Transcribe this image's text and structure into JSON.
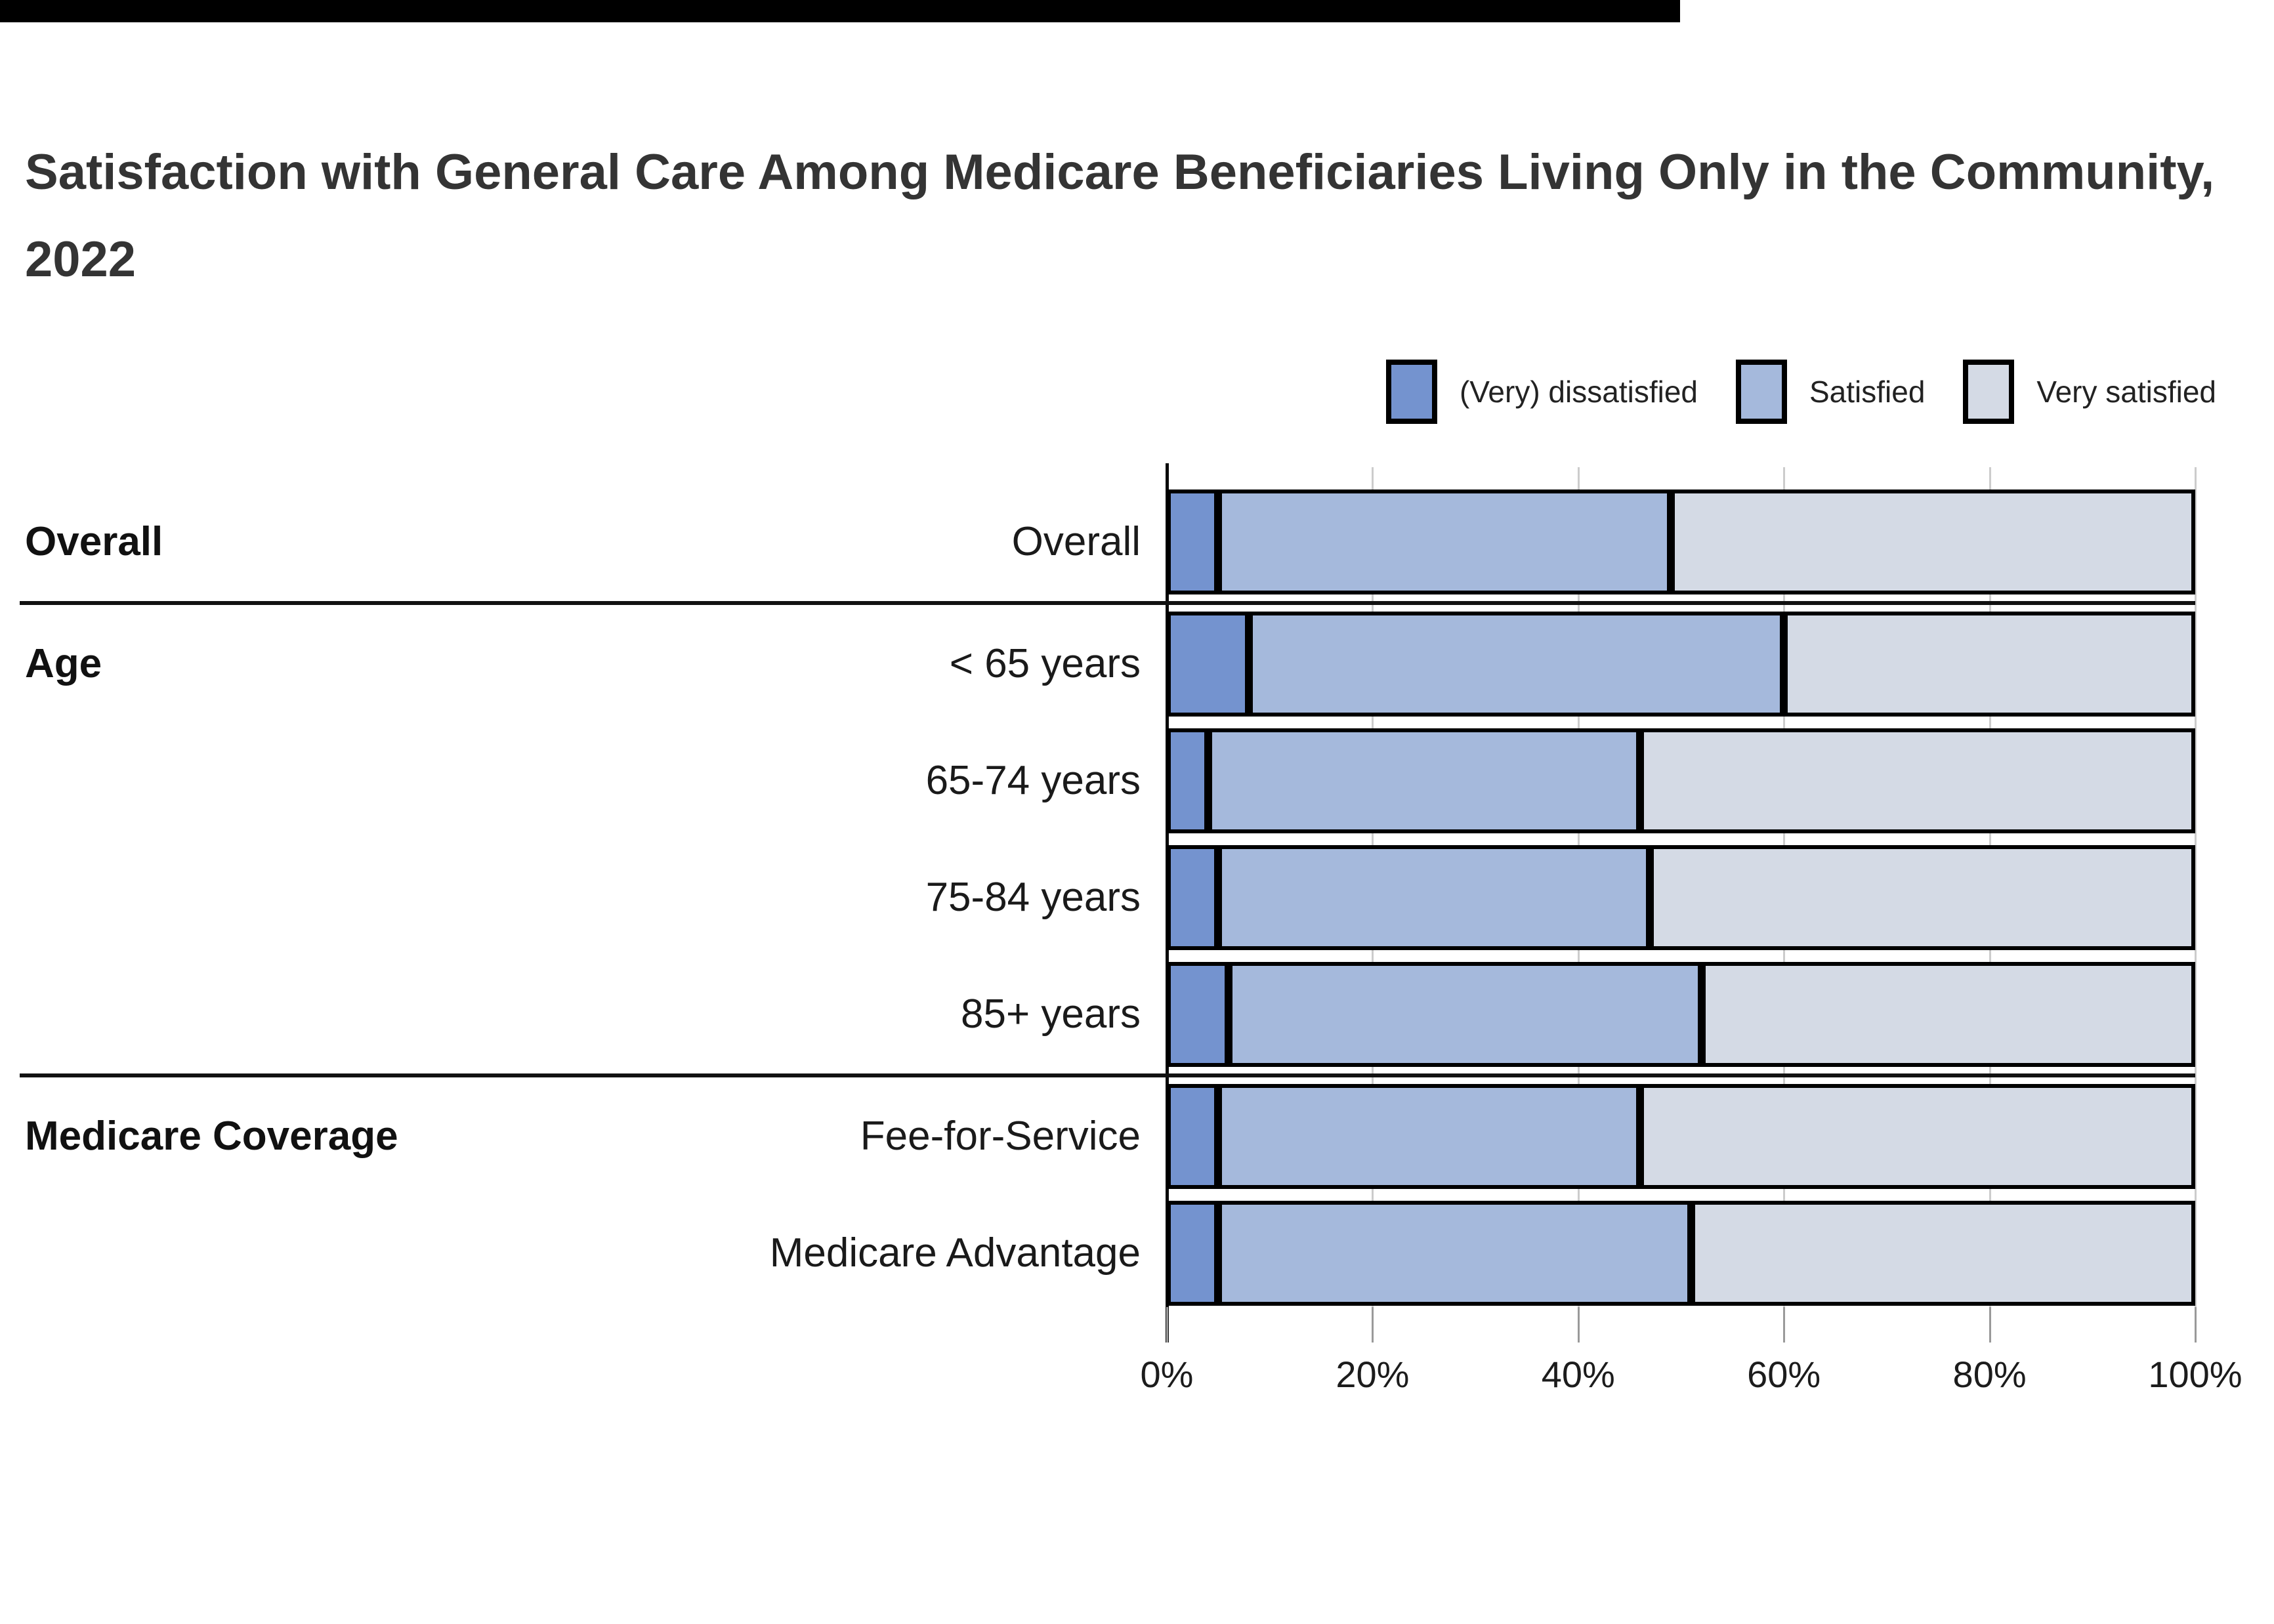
{
  "title": "Satisfaction with General Care Among Medicare Beneficiaries Living Only in the Community, 2022",
  "legend": [
    {
      "label": "(Very) dissatisfied",
      "color": "#7493cf"
    },
    {
      "label": "Satisfied",
      "color": "#a5b9dc"
    },
    {
      "label": "Very satisfied",
      "color": "#d4dae5"
    }
  ],
  "colors": {
    "dissatisfied": "#7493cf",
    "satisfied": "#a5b9dc",
    "very_satisfied": "#d4dae5",
    "segment_border": "#000000",
    "gridline": "#cccccc"
  },
  "x_axis": {
    "tick_labels": [
      "0%",
      "20%",
      "40%",
      "60%",
      "80%",
      "100%"
    ],
    "tick_values": [
      0,
      20,
      40,
      60,
      80,
      100
    ]
  },
  "chart_data": {
    "type": "bar",
    "subtype": "horizontal-stacked-100pct",
    "title": "Satisfaction with General Care Among Medicare Beneficiaries Living Only in the Community, 2022",
    "xlabel": "",
    "ylabel": "",
    "xlim": [
      0,
      100
    ],
    "unit": "percent",
    "grid": true,
    "legend_position": "top-right",
    "series_names": [
      "(Very) dissatisfied",
      "Satisfied",
      "Very satisfied"
    ],
    "groups": [
      {
        "group": "Overall",
        "rows": [
          {
            "label": "Overall",
            "values": [
              5,
              44,
              51
            ]
          }
        ]
      },
      {
        "group": "Age",
        "rows": [
          {
            "label": "< 65 years",
            "values": [
              8,
              52,
              40
            ]
          },
          {
            "label": "65-74 years",
            "values": [
              4,
              42,
              54
            ]
          },
          {
            "label": "75-84 years",
            "values": [
              5,
              42,
              53
            ]
          },
          {
            "label": "85+ years",
            "values": [
              6,
              46,
              48
            ]
          }
        ]
      },
      {
        "group": "Medicare Coverage",
        "rows": [
          {
            "label": "Fee-for-Service",
            "values": [
              5,
              41,
              54
            ]
          },
          {
            "label": "Medicare Advantage",
            "values": [
              5,
              46,
              49
            ]
          }
        ]
      }
    ]
  }
}
